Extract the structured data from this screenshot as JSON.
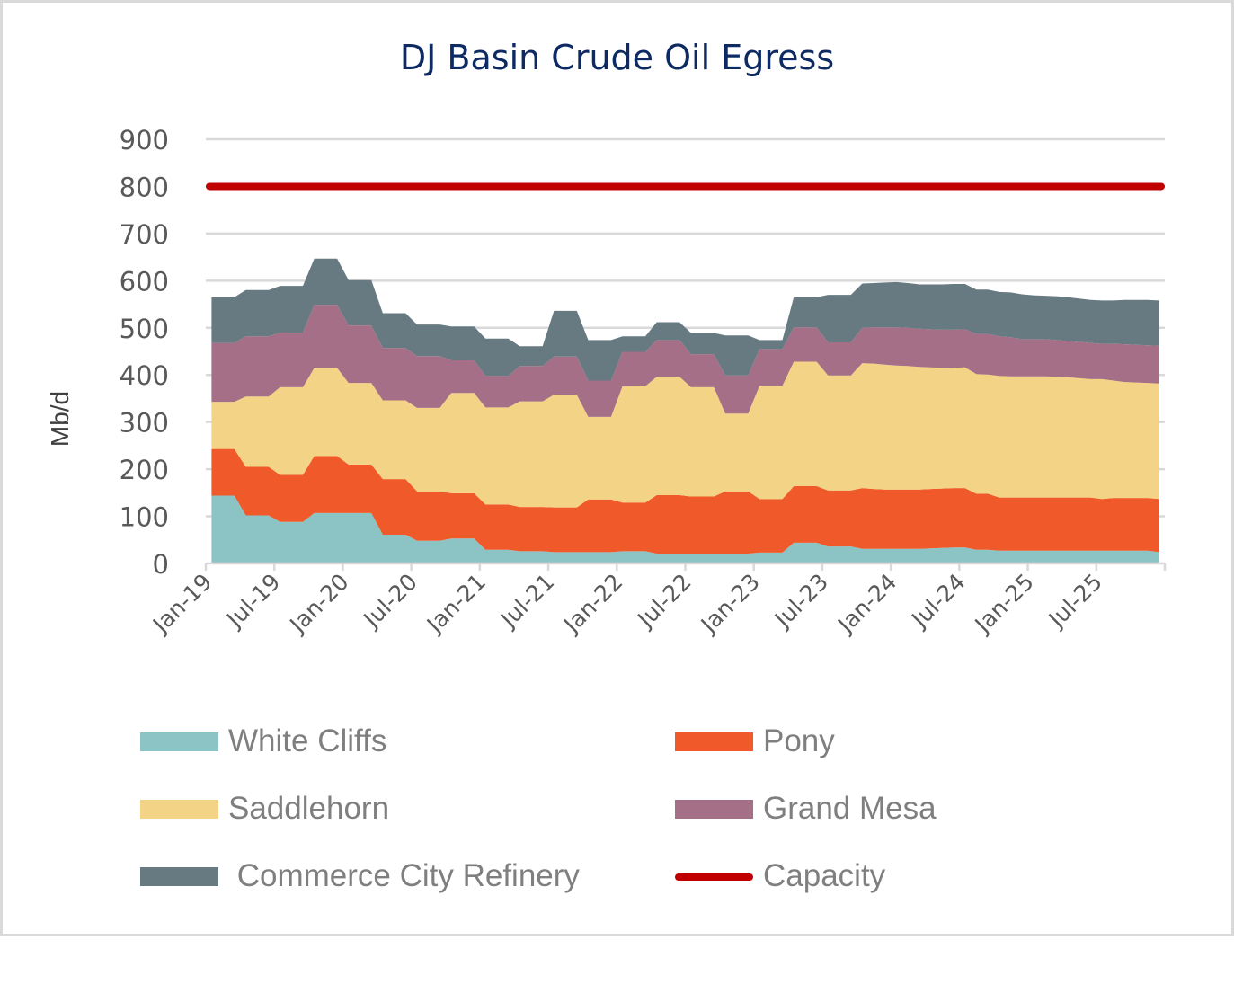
{
  "chart_data": {
    "type": "area",
    "stacked": true,
    "title": "DJ Basin Crude Oil Egress",
    "xlabel": "",
    "ylabel": "Mb/d",
    "ylim": [
      0,
      900
    ],
    "yticks": [
      "0",
      "100",
      "200",
      "300",
      "400",
      "500",
      "600",
      "700",
      "800",
      "900"
    ],
    "ytick_values": [
      0,
      100,
      200,
      300,
      400,
      500,
      600,
      700,
      800,
      900
    ],
    "grid": true,
    "legend_position": "bottom",
    "xtick_labels": [
      "Jan-19",
      "Jul-19",
      "Jan-20",
      "Jul-20",
      "Jan-21",
      "Jul-21",
      "Jan-22",
      "Jul-22",
      "Jan-23",
      "Jul-23",
      "Jan-24",
      "Jul-24",
      "Jan-25",
      "Jul-25"
    ],
    "x_start": "Jan-19",
    "x_end": "Dec-25",
    "x_frequency": "monthly",
    "quarterly_series": {
      "quarters": [
        "Q1-19",
        "Q2-19",
        "Q3-19",
        "Q4-19",
        "Q1-20",
        "Q2-20",
        "Q3-20",
        "Q4-20",
        "Q1-21",
        "Q2-21",
        "Q3-21",
        "Q4-21",
        "Q1-22",
        "Q2-22",
        "Q3-22",
        "Q4-22",
        "Q1-23",
        "Q2-23",
        "Q3-23"
      ],
      "white_cliffs": [
        144,
        102,
        88,
        107,
        107,
        61,
        48,
        53,
        29,
        26,
        24,
        24,
        26,
        21,
        21,
        21,
        23,
        44,
        36
      ],
      "pony": [
        99,
        103,
        100,
        121,
        103,
        118,
        105,
        96,
        96,
        94,
        95,
        112,
        103,
        124,
        121,
        132,
        114,
        120,
        119
      ],
      "saddlehorn": [
        100,
        149,
        186,
        187,
        173,
        167,
        177,
        213,
        206,
        224,
        239,
        175,
        247,
        251,
        232,
        165,
        240,
        264,
        244
      ],
      "grand_mesa": [
        125,
        128,
        116,
        134,
        122,
        111,
        110,
        69,
        67,
        75,
        81,
        77,
        73,
        78,
        70,
        81,
        78,
        73,
        70
      ],
      "commerce_city": [
        97,
        98,
        99,
        98,
        96,
        74,
        67,
        72,
        79,
        42,
        97,
        86,
        33,
        38,
        45,
        85,
        19,
        64,
        101
      ]
    },
    "monthly_series_from_oct23": {
      "months": [
        "Oct-23",
        "Nov-23",
        "Dec-23",
        "Jan-24",
        "Feb-24",
        "Mar-24",
        "Apr-24",
        "May-24",
        "Jun-24",
        "Jul-24",
        "Aug-24",
        "Sep-24",
        "Oct-24",
        "Nov-24",
        "Dec-24",
        "Jan-25",
        "Feb-25",
        "Mar-25",
        "Apr-25",
        "May-25",
        "Jun-25",
        "Jul-25",
        "Aug-25",
        "Sep-25",
        "Oct-25",
        "Nov-25",
        "Dec-25"
      ],
      "white_cliffs": [
        31,
        31,
        31,
        31,
        31,
        31,
        32,
        33,
        34,
        34,
        29,
        29,
        27,
        27,
        27,
        27,
        27,
        27,
        27,
        27,
        27,
        27,
        27,
        27,
        27,
        27,
        24
      ],
      "pony": [
        129,
        127,
        126,
        126,
        126,
        126,
        126,
        126,
        126,
        126,
        119,
        119,
        113,
        113,
        113,
        113,
        113,
        113,
        113,
        113,
        113,
        110,
        112,
        112,
        112,
        112,
        113
      ],
      "saddlehorn": [
        265,
        266,
        265,
        263,
        262,
        260,
        258,
        256,
        255,
        256,
        254,
        253,
        258,
        257,
        257,
        257,
        257,
        256,
        255,
        253,
        251,
        254,
        249,
        246,
        245,
        244,
        245
      ],
      "grand_mesa": [
        75,
        77,
        79,
        81,
        81,
        81,
        81,
        81,
        81,
        81,
        85,
        86,
        84,
        83,
        79,
        79,
        79,
        78,
        77,
        77,
        77,
        75,
        78,
        80,
        80,
        80,
        80
      ],
      "commerce_city": [
        94,
        94,
        95,
        96,
        95,
        94,
        95,
        96,
        97,
        96,
        94,
        94,
        94,
        95,
        95,
        93,
        92,
        93,
        93,
        92,
        91,
        92,
        92,
        94,
        95,
        96,
        96
      ]
    },
    "series": [
      {
        "name": "White Cliffs",
        "key": "white_cliffs",
        "color": "#8cc4c6"
      },
      {
        "name": "Pony",
        "key": "pony",
        "color": "#f05a2a"
      },
      {
        "name": "Saddlehorn",
        "key": "saddlehorn",
        "color": "#f3d385"
      },
      {
        "name": "Grand Mesa",
        "key": "grand_mesa",
        "color": "#a46f87"
      },
      {
        "name": " Commerce City Refinery",
        "key": "commerce_city",
        "color": "#677a82"
      }
    ],
    "capacity": {
      "name": "Capacity",
      "value": 800,
      "color": "#c00000"
    }
  },
  "legend": {
    "items": [
      {
        "label": "White Cliffs",
        "color": "#8cc4c6",
        "kind": "area"
      },
      {
        "label": "Pony",
        "color": "#f05a2a",
        "kind": "area"
      },
      {
        "label": "Saddlehorn",
        "color": "#f3d385",
        "kind": "area"
      },
      {
        "label": "Grand Mesa",
        "color": "#a46f87",
        "kind": "area"
      },
      {
        "label": " Commerce City Refinery",
        "color": "#677a82",
        "kind": "area"
      },
      {
        "label": "Capacity",
        "color": "#c00000",
        "kind": "line"
      }
    ]
  }
}
